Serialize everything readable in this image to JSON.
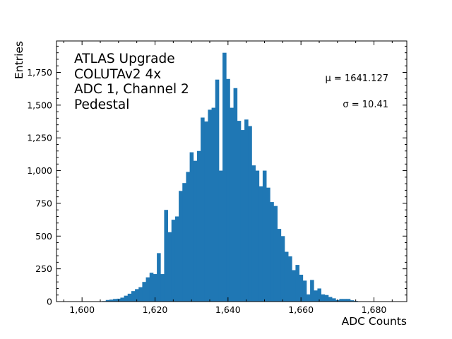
{
  "chart_data": {
    "type": "bar",
    "title": "",
    "xlabel": "ADC Counts",
    "ylabel": "Entries",
    "xlim": [
      1593,
      1689
    ],
    "ylim": [
      0,
      1990
    ],
    "grid": false,
    "bin_width": 1,
    "x_ticks": [
      1600,
      1620,
      1640,
      1660,
      1680
    ],
    "x_tick_labels": [
      "1,600",
      "1,620",
      "1,640",
      "1,660",
      "1,680"
    ],
    "y_ticks": [
      0,
      250,
      500,
      750,
      1000,
      1250,
      1500,
      1750
    ],
    "y_tick_labels": [
      "0",
      "250",
      "500",
      "750",
      "1,000",
      "1,250",
      "1,500",
      "1,750"
    ],
    "color": "#1f77b4",
    "bins": [
      1600,
      1601,
      1602,
      1603,
      1604,
      1605,
      1606,
      1607,
      1608,
      1609,
      1610,
      1611,
      1612,
      1613,
      1614,
      1615,
      1616,
      1617,
      1618,
      1619,
      1620,
      1621,
      1622,
      1623,
      1624,
      1625,
      1626,
      1627,
      1628,
      1629,
      1630,
      1631,
      1632,
      1633,
      1634,
      1635,
      1636,
      1637,
      1638,
      1639,
      1640,
      1641,
      1642,
      1643,
      1644,
      1645,
      1646,
      1647,
      1648,
      1649,
      1650,
      1651,
      1652,
      1653,
      1654,
      1655,
      1656,
      1657,
      1658,
      1659,
      1660,
      1661,
      1662,
      1663,
      1664,
      1665,
      1666,
      1667,
      1668,
      1669,
      1670,
      1671,
      1672,
      1673,
      1674,
      1675,
      1676,
      1677,
      1678,
      1679,
      1680
    ],
    "values": [
      0,
      0,
      2,
      0,
      0,
      2,
      4,
      12,
      15,
      20,
      22,
      30,
      45,
      60,
      80,
      95,
      110,
      150,
      185,
      220,
      210,
      370,
      210,
      700,
      530,
      625,
      650,
      845,
      905,
      990,
      1140,
      1075,
      1150,
      1405,
      1375,
      1465,
      1480,
      1695,
      1000,
      1900,
      1700,
      1480,
      1630,
      1380,
      1310,
      1390,
      1340,
      1040,
      1000,
      880,
      1000,
      870,
      760,
      730,
      555,
      500,
      380,
      345,
      240,
      280,
      205,
      160,
      55,
      165,
      85,
      100,
      55,
      50,
      35,
      25,
      12,
      20,
      20,
      20,
      10,
      5,
      0,
      0,
      0,
      0,
      0
    ],
    "annotations": {
      "label_lines": [
        "ATLAS Upgrade",
        "COLUTAv2 4x",
        "ADC 1, Channel 2",
        "Pedestal"
      ],
      "mu": "μ = 1641.127",
      "sigma": "σ = 10.41"
    }
  },
  "labels": {
    "line1": "ATLAS Upgrade",
    "line2": "COLUTAv2 4x",
    "line3": "ADC 1, Channel 2",
    "line4": "Pedestal",
    "mu": "μ = 1641.127",
    "sigma": "σ = 10.41",
    "xlabel": "ADC Counts",
    "ylabel": "Entries"
  }
}
